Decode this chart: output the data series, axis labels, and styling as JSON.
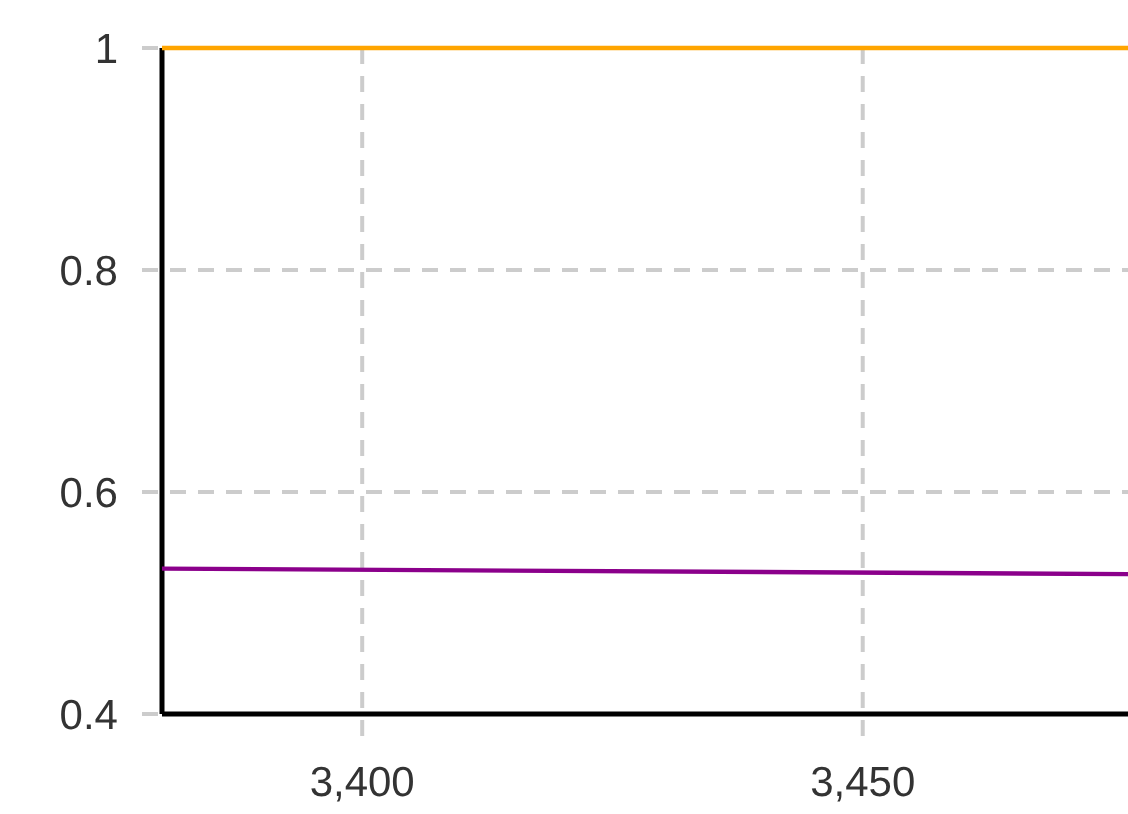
{
  "chart_data": {
    "type": "line",
    "x": [
      3380,
      3476.5
    ],
    "series": [
      {
        "color": "#ffa500",
        "values": [
          1,
          1
        ]
      },
      {
        "color": "#8b008b",
        "values": [
          0.531,
          0.526
        ]
      }
    ],
    "xlim": [
      3380,
      3476.5
    ],
    "ylim": [
      0.4,
      1
    ],
    "xticks": [
      {
        "value": 3400,
        "label": "3,400"
      },
      {
        "value": 3450,
        "label": "3,450"
      }
    ],
    "yticks": [
      0.4,
      0.6,
      0.8,
      1
    ],
    "grid": true,
    "line_style": "solid"
  }
}
